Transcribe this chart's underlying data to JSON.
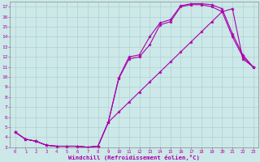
{
  "xlabel": "Windchill (Refroidissement éolien,°C)",
  "bg_color": "#cce8e8",
  "grid_color": "#aacccc",
  "line_color": "#aa00aa",
  "xmin": 0,
  "xmax": 23,
  "ymin": 3,
  "ymax": 17,
  "line1_x": [
    0,
    1,
    2,
    3,
    4,
    5,
    6,
    7,
    8,
    9,
    10,
    11,
    12,
    13,
    14,
    15,
    16,
    17,
    18,
    19,
    20,
    21,
    22,
    23
  ],
  "line1_y": [
    4.5,
    3.8,
    3.6,
    3.2,
    3.1,
    3.1,
    3.1,
    3.0,
    3.1,
    5.5,
    9.8,
    11.8,
    12.0,
    13.2,
    15.2,
    15.5,
    17.0,
    17.2,
    17.2,
    17.0,
    16.5,
    14.0,
    12.0,
    11.0
  ],
  "line2_x": [
    0,
    1,
    2,
    3,
    4,
    5,
    6,
    7,
    8,
    9,
    10,
    11,
    12,
    13,
    14,
    15,
    16,
    17,
    18,
    19,
    20,
    21,
    22,
    23
  ],
  "line2_y": [
    4.5,
    3.8,
    3.6,
    3.2,
    3.1,
    3.1,
    3.1,
    3.0,
    3.1,
    5.5,
    9.9,
    12.0,
    12.2,
    14.0,
    15.4,
    15.7,
    17.1,
    17.3,
    17.3,
    17.2,
    16.8,
    14.3,
    12.2,
    11.0
  ],
  "line3_x": [
    0,
    1,
    2,
    3,
    4,
    5,
    6,
    7,
    8,
    9,
    10,
    11,
    12,
    13,
    14,
    15,
    16,
    17,
    18,
    19,
    20,
    21,
    22,
    23
  ],
  "line3_y": [
    4.5,
    3.8,
    3.6,
    3.2,
    3.1,
    3.1,
    3.1,
    3.0,
    3.1,
    5.5,
    6.5,
    7.5,
    8.5,
    9.5,
    10.5,
    11.5,
    12.5,
    13.5,
    14.5,
    15.5,
    16.5,
    16.8,
    11.8,
    11.0
  ],
  "xtick_labels": [
    "0",
    "1",
    "2",
    "3",
    "4",
    "5",
    "6",
    "7",
    "8",
    "9",
    "10",
    "11",
    "12",
    "13",
    "14",
    "15",
    "16",
    "17",
    "18",
    "19",
    "20",
    "21",
    "22",
    "23"
  ],
  "ytick_labels": [
    "3",
    "4",
    "5",
    "6",
    "7",
    "8",
    "9",
    "10",
    "11",
    "12",
    "13",
    "14",
    "15",
    "16",
    "17"
  ]
}
